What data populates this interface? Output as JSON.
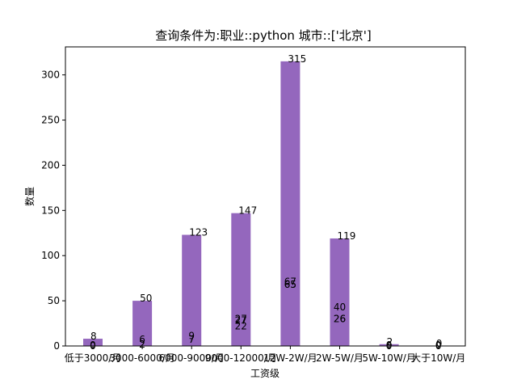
{
  "chart_data": {
    "type": "bar",
    "title": "查询条件为:职业::python     城市::['北京']",
    "xlabel": "工资级",
    "ylabel": "数量",
    "categories": [
      "低于3000/月",
      "3000-6000/月",
      "6000-9000/月",
      "9000-12000/月",
      "12W-2W/月",
      "2W-5W/月",
      "5W-10W/月",
      "大于10W/月"
    ],
    "values": [
      8,
      50,
      123,
      147,
      315,
      119,
      2,
      0
    ],
    "ylim": [
      0,
      331
    ],
    "yticks": [
      0,
      50,
      100,
      150,
      200,
      250,
      300
    ],
    "bar_color": "#9467bd",
    "grid": false,
    "extra_labels": [
      [
        "0",
        "0"
      ],
      [
        "6",
        "2",
        "2"
      ],
      [
        "9",
        "7",
        "7"
      ],
      [
        "27",
        "27",
        "22"
      ],
      [
        "67",
        "65",
        "65"
      ],
      [
        "40",
        "26",
        "26"
      ],
      [
        "0",
        "0"
      ],
      [
        "0",
        "0"
      ]
    ],
    "extra_label_values": [
      [
        1,
        0
      ],
      [
        7,
        2,
        2
      ],
      [
        11,
        7,
        7
      ],
      [
        30,
        28,
        22
      ],
      [
        71,
        68,
        68
      ],
      [
        43,
        30,
        30
      ],
      [
        1,
        0
      ],
      [
        1,
        0
      ]
    ]
  }
}
